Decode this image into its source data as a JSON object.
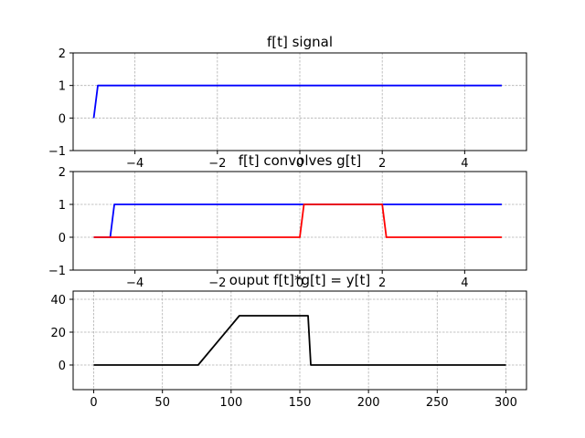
{
  "chart_data": [
    {
      "type": "line",
      "title": "f[t] signal",
      "xlabel": "",
      "ylabel": "",
      "xlim": [
        -5.5,
        5.5
      ],
      "ylim": [
        -1,
        2
      ],
      "xticks": [
        -4,
        -2,
        0,
        2,
        4
      ],
      "xtick_labels": [
        "−4",
        "−2",
        "0",
        "2",
        "4"
      ],
      "yticks": [
        -1,
        0,
        1,
        2
      ],
      "ytick_labels": [
        "−1",
        "0",
        "1",
        "2"
      ],
      "grid": true,
      "series": [
        {
          "color": "#0000ff",
          "x": [
            -5.0,
            -4.9,
            4.9
          ],
          "y": [
            0,
            1,
            1
          ]
        }
      ]
    },
    {
      "type": "line",
      "title": "f[t] convolves g[t]",
      "xlabel": "",
      "ylabel": "",
      "xlim": [
        -5.5,
        5.5
      ],
      "ylim": [
        -1,
        2
      ],
      "xticks": [
        -4,
        -2,
        0,
        2,
        4
      ],
      "xtick_labels": [
        "−4",
        "−2",
        "0",
        "2",
        "4"
      ],
      "yticks": [
        -1,
        0,
        1,
        2
      ],
      "ytick_labels": [
        "−1",
        "0",
        "1",
        "2"
      ],
      "grid": true,
      "series": [
        {
          "color": "#0000ff",
          "x": [
            -5.0,
            -4.6,
            -4.5,
            4.9
          ],
          "y": [
            0,
            0,
            1,
            1
          ]
        },
        {
          "color": "#ff0000",
          "x": [
            -5.0,
            0.0,
            0.1,
            2.0,
            2.1,
            4.9
          ],
          "y": [
            0,
            0,
            1,
            1,
            0,
            0
          ]
        }
      ]
    },
    {
      "type": "line",
      "title": "ouput f[t]*g[t] = y[t]",
      "xlabel": "",
      "ylabel": "",
      "xlim": [
        -15,
        315
      ],
      "ylim": [
        -15,
        45
      ],
      "xticks": [
        0,
        50,
        100,
        150,
        200,
        250,
        300
      ],
      "xtick_labels": [
        "0",
        "50",
        "100",
        "150",
        "200",
        "250",
        "300"
      ],
      "yticks": [
        0,
        20,
        40
      ],
      "ytick_labels": [
        "0",
        "20",
        "40"
      ],
      "grid": true,
      "series": [
        {
          "color": "#000000",
          "x": [
            0,
            76,
            106,
            156,
            158,
            300
          ],
          "y": [
            0,
            0,
            30,
            30,
            0,
            0
          ]
        }
      ]
    }
  ]
}
